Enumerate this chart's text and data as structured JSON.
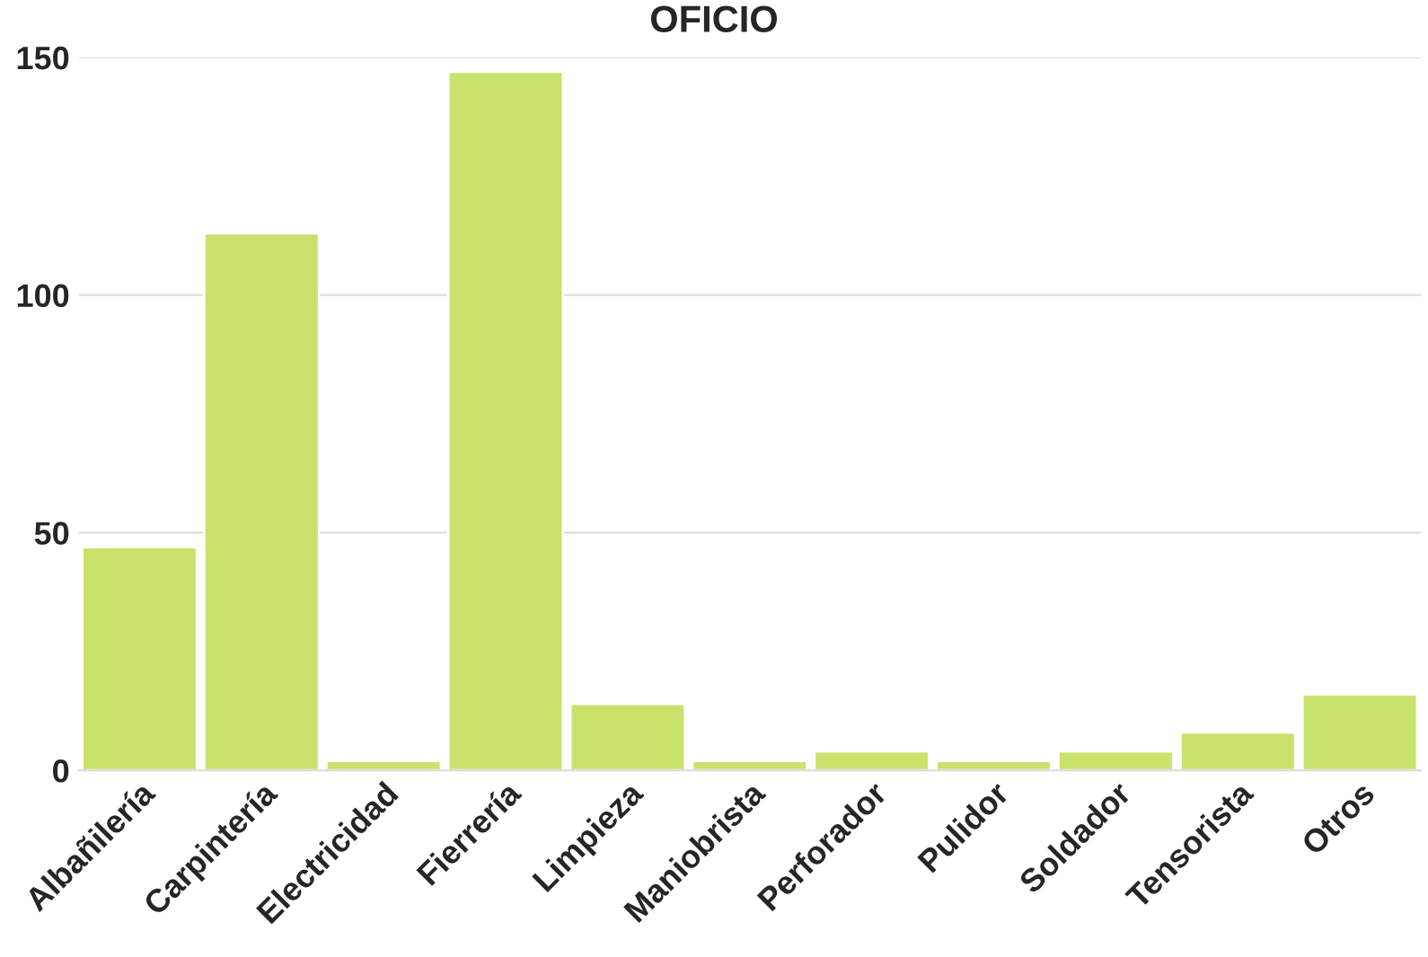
{
  "chart_data": {
    "type": "bar",
    "title": "OFICIO",
    "categories": [
      "Albañilería",
      "Carpintería",
      "Electricidad",
      "Fierrería",
      "Limpieza",
      "Maniobrista",
      "Perforador",
      "Pulidor",
      "Soldador",
      "Tensorista",
      "Otros"
    ],
    "values": [
      47,
      113,
      2,
      147,
      14,
      2,
      4,
      2,
      4,
      8,
      16
    ],
    "color": "#c9e26b",
    "ylim": [
      0,
      150
    ],
    "yticks": [
      0,
      50,
      100,
      150
    ],
    "grid": "y",
    "legend": false
  }
}
